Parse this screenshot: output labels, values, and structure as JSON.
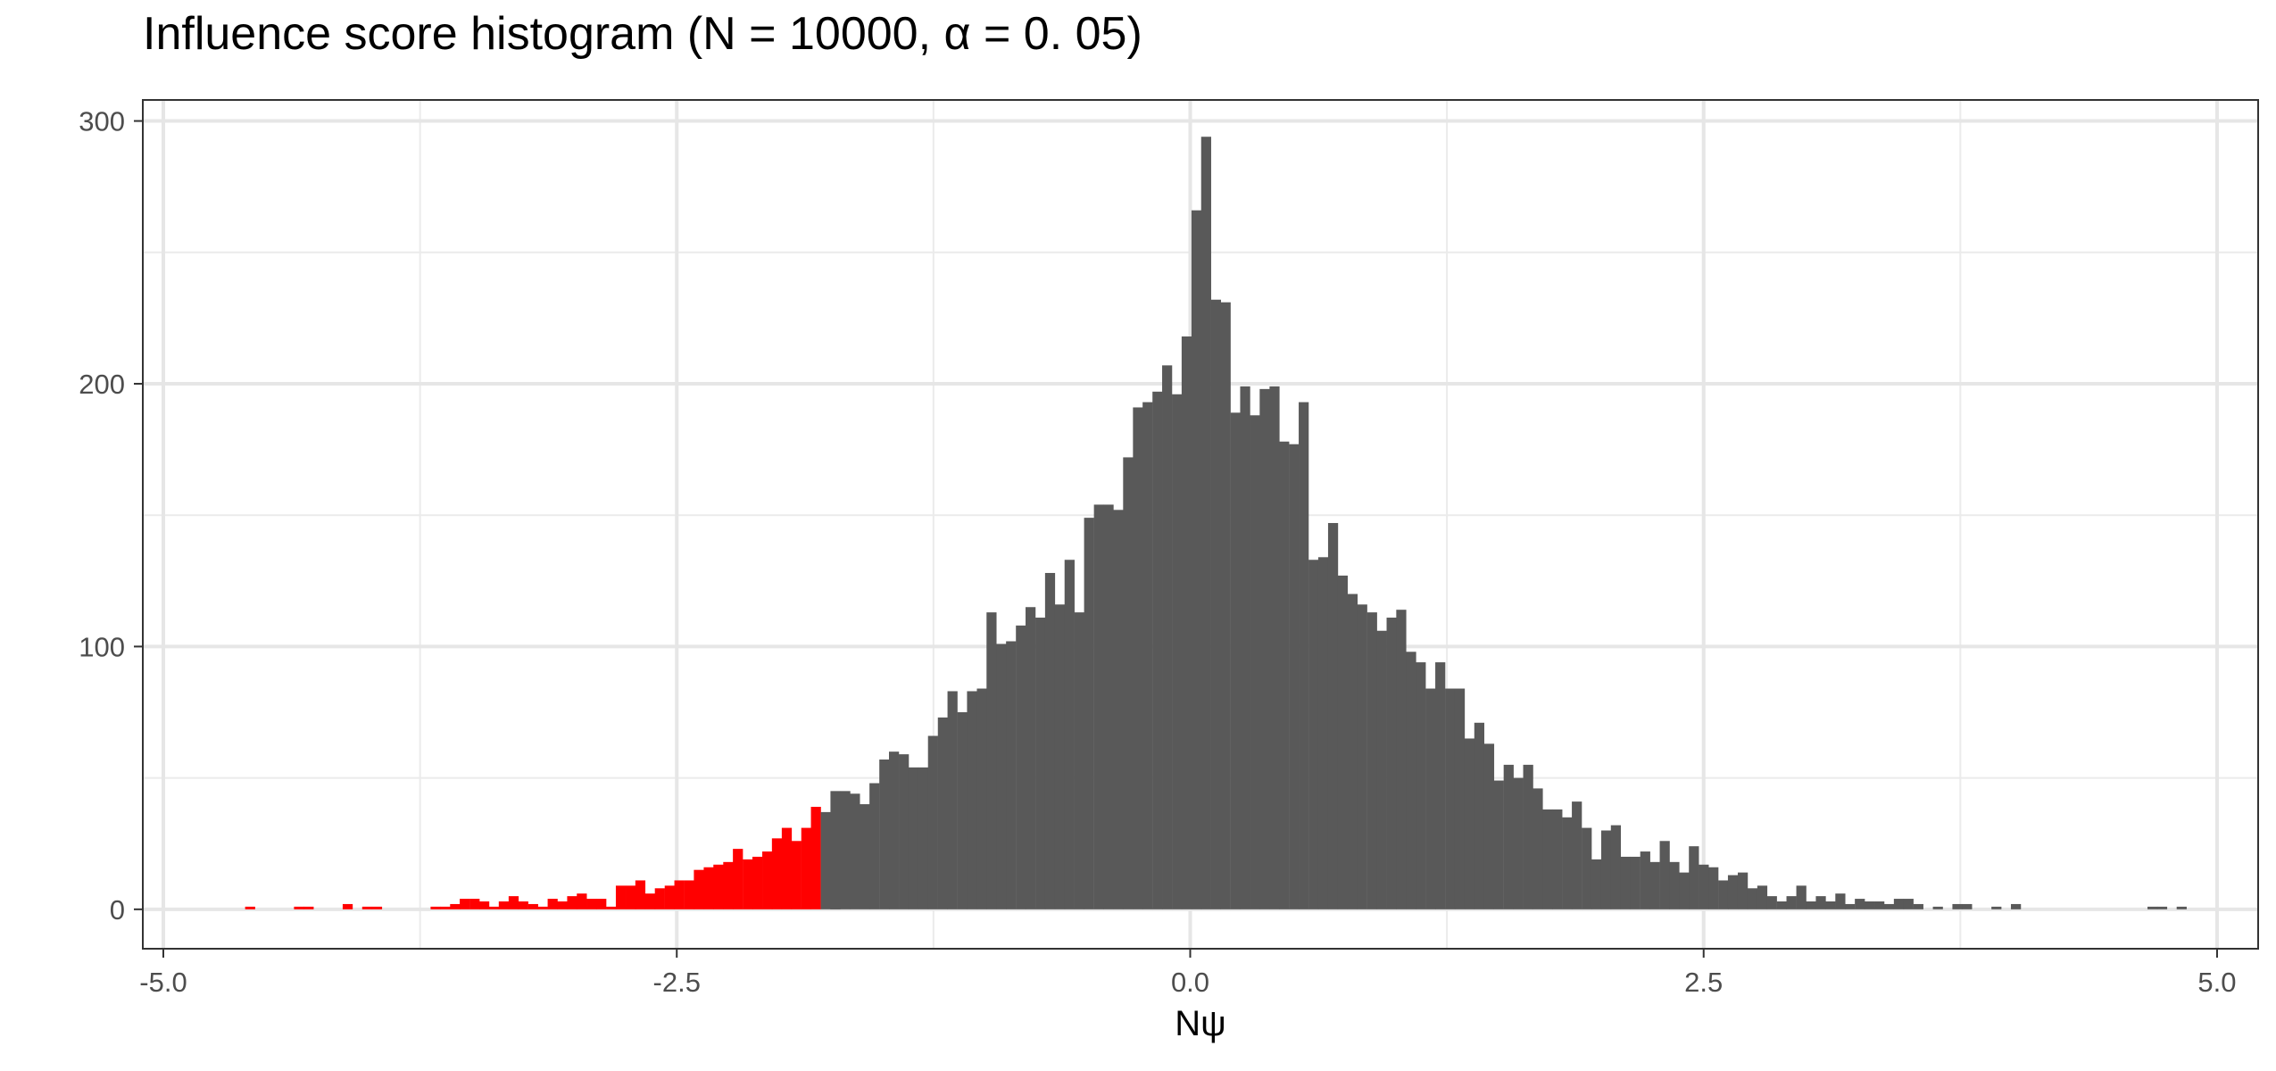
{
  "chart_data": {
    "type": "bar",
    "title": "Influence score histogram (N = 10000, α = 0. 05)",
    "xlabel": "Nψ",
    "ylabel": "",
    "xlim": [
      -5.1,
      5.2
    ],
    "ylim": [
      -15,
      308
    ],
    "x_ticks": [
      -5.0,
      -2.5,
      0.0,
      2.5,
      5.0
    ],
    "x_tick_labels": [
      "-5.0",
      "-2.5",
      "0.0",
      "2.5",
      "5.0"
    ],
    "y_ticks": [
      0,
      100,
      200,
      300
    ],
    "y_tick_labels": [
      "0",
      "100",
      "200",
      "300"
    ],
    "grid": true,
    "legend": "none",
    "bin_width": 0.0475,
    "threshold": -1.78,
    "colors": {
      "tail": "#ff0000",
      "body": "#595959"
    },
    "bins": [
      {
        "x": -4.578,
        "count": 1
      },
      {
        "x": -4.34,
        "count": 1
      },
      {
        "x": -4.293,
        "count": 1
      },
      {
        "x": -4.103,
        "count": 2
      },
      {
        "x": -4.008,
        "count": 1
      },
      {
        "x": -3.96,
        "count": 1
      },
      {
        "x": -3.675,
        "count": 1
      },
      {
        "x": -3.628,
        "count": 1
      },
      {
        "x": -3.58,
        "count": 2
      },
      {
        "x": -3.533,
        "count": 4
      },
      {
        "x": -3.485,
        "count": 4
      },
      {
        "x": -3.438,
        "count": 3
      },
      {
        "x": -3.39,
        "count": 1
      },
      {
        "x": -3.343,
        "count": 3
      },
      {
        "x": -3.295,
        "count": 5
      },
      {
        "x": -3.248,
        "count": 3
      },
      {
        "x": -3.2,
        "count": 2
      },
      {
        "x": -3.153,
        "count": 1
      },
      {
        "x": -3.105,
        "count": 4
      },
      {
        "x": -3.058,
        "count": 3
      },
      {
        "x": -3.01,
        "count": 5
      },
      {
        "x": -2.963,
        "count": 6
      },
      {
        "x": -2.915,
        "count": 4
      },
      {
        "x": -2.868,
        "count": 4
      },
      {
        "x": -2.82,
        "count": 1
      },
      {
        "x": -2.773,
        "count": 9
      },
      {
        "x": -2.725,
        "count": 9
      },
      {
        "x": -2.678,
        "count": 11
      },
      {
        "x": -2.63,
        "count": 6
      },
      {
        "x": -2.583,
        "count": 8
      },
      {
        "x": -2.535,
        "count": 9
      },
      {
        "x": -2.488,
        "count": 11
      },
      {
        "x": -2.44,
        "count": 11
      },
      {
        "x": -2.393,
        "count": 15
      },
      {
        "x": -2.345,
        "count": 16
      },
      {
        "x": -2.298,
        "count": 17
      },
      {
        "x": -2.25,
        "count": 18
      },
      {
        "x": -2.203,
        "count": 23
      },
      {
        "x": -2.155,
        "count": 19
      },
      {
        "x": -2.108,
        "count": 20
      },
      {
        "x": -2.06,
        "count": 22
      },
      {
        "x": -2.013,
        "count": 27
      },
      {
        "x": -1.965,
        "count": 31
      },
      {
        "x": -1.918,
        "count": 26
      },
      {
        "x": -1.87,
        "count": 31
      },
      {
        "x": -1.823,
        "count": 39
      },
      {
        "x": -1.775,
        "count": 37
      },
      {
        "x": -1.728,
        "count": 20
      },
      {
        "x": -1.728,
        "count": 45
      },
      {
        "x": -1.68,
        "count": 45
      },
      {
        "x": -1.633,
        "count": 44
      },
      {
        "x": -1.585,
        "count": 40
      },
      {
        "x": -1.538,
        "count": 48
      },
      {
        "x": -1.49,
        "count": 57
      },
      {
        "x": -1.443,
        "count": 60
      },
      {
        "x": -1.395,
        "count": 59
      },
      {
        "x": -1.348,
        "count": 54
      },
      {
        "x": -1.3,
        "count": 54
      },
      {
        "x": -1.253,
        "count": 66
      },
      {
        "x": -1.205,
        "count": 73
      },
      {
        "x": -1.158,
        "count": 83
      },
      {
        "x": -1.11,
        "count": 75
      },
      {
        "x": -1.063,
        "count": 83
      },
      {
        "x": -1.015,
        "count": 84
      },
      {
        "x": -0.968,
        "count": 113
      },
      {
        "x": -0.92,
        "count": 101
      },
      {
        "x": -0.873,
        "count": 102
      },
      {
        "x": -0.825,
        "count": 108
      },
      {
        "x": -0.778,
        "count": 115
      },
      {
        "x": -0.73,
        "count": 111
      },
      {
        "x": -0.683,
        "count": 128
      },
      {
        "x": -0.635,
        "count": 116
      },
      {
        "x": -0.588,
        "count": 133
      },
      {
        "x": -0.54,
        "count": 113
      },
      {
        "x": -0.493,
        "count": 149
      },
      {
        "x": -0.445,
        "count": 154
      },
      {
        "x": -0.398,
        "count": 154
      },
      {
        "x": -0.35,
        "count": 152
      },
      {
        "x": -0.303,
        "count": 172
      },
      {
        "x": -0.255,
        "count": 191
      },
      {
        "x": -0.208,
        "count": 193
      },
      {
        "x": -0.16,
        "count": 197
      },
      {
        "x": -0.113,
        "count": 207
      },
      {
        "x": -0.065,
        "count": 196
      },
      {
        "x": -0.018,
        "count": 218
      },
      {
        "x": 0.03,
        "count": 266
      },
      {
        "x": 0.077,
        "count": 294
      },
      {
        "x": 0.125,
        "count": 232
      },
      {
        "x": 0.172,
        "count": 231
      },
      {
        "x": 0.22,
        "count": 189
      },
      {
        "x": 0.267,
        "count": 199
      },
      {
        "x": 0.315,
        "count": 188
      },
      {
        "x": 0.362,
        "count": 198
      },
      {
        "x": 0.41,
        "count": 199
      },
      {
        "x": 0.457,
        "count": 178
      },
      {
        "x": 0.505,
        "count": 177
      },
      {
        "x": 0.552,
        "count": 193
      },
      {
        "x": 0.6,
        "count": 133
      },
      {
        "x": 0.647,
        "count": 134
      },
      {
        "x": 0.695,
        "count": 147
      },
      {
        "x": 0.742,
        "count": 127
      },
      {
        "x": 0.79,
        "count": 120
      },
      {
        "x": 0.837,
        "count": 116
      },
      {
        "x": 0.885,
        "count": 113
      },
      {
        "x": 0.932,
        "count": 106
      },
      {
        "x": 0.98,
        "count": 111
      },
      {
        "x": 1.027,
        "count": 114
      },
      {
        "x": 1.075,
        "count": 98
      },
      {
        "x": 1.122,
        "count": 94
      },
      {
        "x": 1.17,
        "count": 84
      },
      {
        "x": 1.217,
        "count": 94
      },
      {
        "x": 1.265,
        "count": 84
      },
      {
        "x": 1.312,
        "count": 84
      },
      {
        "x": 1.36,
        "count": 65
      },
      {
        "x": 1.407,
        "count": 71
      },
      {
        "x": 1.455,
        "count": 63
      },
      {
        "x": 1.502,
        "count": 49
      },
      {
        "x": 1.55,
        "count": 55
      },
      {
        "x": 1.597,
        "count": 50
      },
      {
        "x": 1.645,
        "count": 55
      },
      {
        "x": 1.692,
        "count": 46
      },
      {
        "x": 1.74,
        "count": 38
      },
      {
        "x": 1.787,
        "count": 38
      },
      {
        "x": 1.835,
        "count": 35
      },
      {
        "x": 1.882,
        "count": 41
      },
      {
        "x": 1.93,
        "count": 31
      },
      {
        "x": 1.977,
        "count": 19
      },
      {
        "x": 2.025,
        "count": 30
      },
      {
        "x": 2.072,
        "count": 32
      },
      {
        "x": 2.12,
        "count": 20
      },
      {
        "x": 2.167,
        "count": 20
      },
      {
        "x": 2.215,
        "count": 22
      },
      {
        "x": 2.262,
        "count": 18
      },
      {
        "x": 2.31,
        "count": 26
      },
      {
        "x": 2.357,
        "count": 18
      },
      {
        "x": 2.405,
        "count": 14
      },
      {
        "x": 2.452,
        "count": 24
      },
      {
        "x": 2.5,
        "count": 17
      },
      {
        "x": 2.547,
        "count": 16
      },
      {
        "x": 2.595,
        "count": 11
      },
      {
        "x": 2.642,
        "count": 13
      },
      {
        "x": 2.69,
        "count": 14
      },
      {
        "x": 2.737,
        "count": 8
      },
      {
        "x": 2.785,
        "count": 9
      },
      {
        "x": 2.832,
        "count": 5
      },
      {
        "x": 2.88,
        "count": 3
      },
      {
        "x": 2.927,
        "count": 5
      },
      {
        "x": 2.975,
        "count": 9
      },
      {
        "x": 3.022,
        "count": 3
      },
      {
        "x": 3.07,
        "count": 5
      },
      {
        "x": 3.117,
        "count": 3
      },
      {
        "x": 3.165,
        "count": 6
      },
      {
        "x": 3.212,
        "count": 2
      },
      {
        "x": 3.26,
        "count": 4
      },
      {
        "x": 3.307,
        "count": 3
      },
      {
        "x": 3.355,
        "count": 3
      },
      {
        "x": 3.402,
        "count": 2
      },
      {
        "x": 3.45,
        "count": 4
      },
      {
        "x": 3.497,
        "count": 4
      },
      {
        "x": 3.545,
        "count": 2
      },
      {
        "x": 3.64,
        "count": 1
      },
      {
        "x": 3.735,
        "count": 2
      },
      {
        "x": 3.782,
        "count": 2
      },
      {
        "x": 3.925,
        "count": 1
      },
      {
        "x": 4.02,
        "count": 2
      },
      {
        "x": 4.685,
        "count": 1
      },
      {
        "x": 4.732,
        "count": 1
      },
      {
        "x": 4.827,
        "count": 1
      }
    ]
  }
}
